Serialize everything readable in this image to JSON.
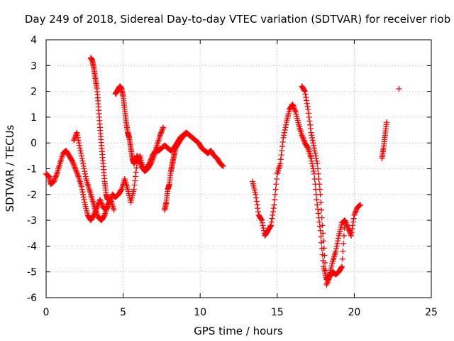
{
  "chart_data": {
    "type": "scatter",
    "title": "Day 249 of 2018, Sidereal Day-to-day VTEC variation (SDTVAR) for receiver riob",
    "xlabel": "GPS time / hours",
    "ylabel": "SDTVAR / TECUs",
    "xlim": [
      0,
      25
    ],
    "ylim": [
      -6,
      4
    ],
    "xticks": [
      0,
      5,
      10,
      15,
      20,
      25
    ],
    "yticks": [
      -6,
      -5,
      -4,
      -3,
      -2,
      -1,
      0,
      1,
      2,
      3,
      4
    ],
    "grid": true,
    "marker": "+",
    "color": "#ff0000",
    "series": [
      {
        "name": "SDTVAR",
        "segments": [
          {
            "x": [
              0.0,
              0.2,
              0.3,
              0.5,
              0.7,
              0.9,
              1.1,
              1.3,
              1.5,
              1.7,
              1.9,
              2.1,
              2.3,
              2.5,
              2.7,
              2.9,
              3.1,
              3.3,
              3.5,
              3.7,
              3.9,
              4.1,
              4.3,
              4.5,
              4.7,
              4.9,
              5.1,
              5.3,
              5.5,
              5.7,
              5.9,
              6.1,
              6.3,
              6.5,
              6.7,
              6.9,
              7.1,
              7.3,
              7.5,
              7.7,
              7.9,
              8.1,
              8.3,
              8.5,
              8.7,
              8.9,
              9.1,
              9.3,
              9.5,
              9.7,
              9.9,
              10.1,
              10.3,
              10.5,
              10.7,
              10.9,
              11.1,
              11.3,
              11.5
            ],
            "y": [
              -1.2,
              -1.3,
              -1.6,
              -1.5,
              -1.2,
              -0.8,
              -0.4,
              -0.3,
              -0.5,
              -0.7,
              -1.0,
              -1.3,
              -1.7,
              -2.3,
              -2.8,
              -3.0,
              -2.8,
              -2.5,
              -2.2,
              -2.5,
              -2.6,
              -2.3,
              -2.0,
              -2.1,
              -2.0,
              -1.8,
              -1.4,
              -1.8,
              -2.3,
              -1.8,
              -0.8,
              -0.5,
              -1.0,
              -1.0,
              -0.8,
              -0.5,
              -0.3,
              -0.3,
              -0.2,
              -0.1,
              -0.2,
              -0.3,
              -0.2,
              0.0,
              0.2,
              0.3,
              0.4,
              0.3,
              0.2,
              0.1,
              0.0,
              -0.2,
              -0.3,
              -0.4,
              -0.3,
              -0.5,
              -0.6,
              -0.8,
              -0.9
            ]
          },
          {
            "x": [
              1.8,
              2.0,
              2.2,
              2.4,
              2.6,
              2.8,
              3.0,
              3.2,
              3.4,
              3.6,
              3.8,
              4.0,
              4.2,
              4.4
            ],
            "y": [
              0.1,
              0.4,
              -0.2,
              -0.8,
              -1.4,
              -1.8,
              -2.2,
              -2.6,
              -2.9,
              -3.0,
              -2.8,
              -2.4,
              -2.2,
              -2.6
            ]
          },
          {
            "x": [
              2.9,
              3.0,
              3.1,
              3.2,
              3.3,
              3.4,
              3.5,
              3.6,
              3.7,
              3.8,
              3.9,
              4.0
            ],
            "y": [
              3.3,
              3.2,
              2.9,
              2.5,
              2.1,
              1.4,
              0.6,
              -0.1,
              -0.8,
              -1.5,
              -2.0,
              -2.2
            ]
          },
          {
            "x": [
              4.5,
              4.6,
              4.7,
              4.8,
              4.9,
              5.0,
              5.1,
              5.2,
              5.3,
              5.4,
              5.5,
              5.6,
              5.7,
              5.8,
              5.9,
              6.0
            ],
            "y": [
              1.9,
              2.0,
              2.1,
              2.2,
              2.1,
              1.8,
              1.3,
              0.8,
              0.4,
              0.2,
              -0.2,
              -0.6,
              -0.8,
              -0.7,
              -0.5,
              -0.6
            ]
          },
          {
            "x": [
              6.0,
              6.2,
              6.4,
              6.6,
              6.8,
              7.0,
              7.2,
              7.4,
              7.6
            ],
            "y": [
              -0.6,
              -0.9,
              -1.1,
              -1.0,
              -0.8,
              -0.5,
              -0.1,
              0.3,
              0.6
            ]
          },
          {
            "x": [
              7.7,
              7.8,
              7.9,
              8.0,
              8.1,
              8.2,
              8.3,
              8.4,
              8.6,
              8.8,
              9.0
            ],
            "y": [
              -2.6,
              -2.3,
              -1.8,
              -1.6,
              -1.1,
              -0.8,
              -0.5,
              -0.2,
              0.0,
              0.2,
              0.3
            ]
          },
          {
            "x": [
              13.4,
              13.6,
              13.8,
              14.0,
              14.2,
              14.4,
              14.6,
              14.8,
              15.0,
              15.2,
              15.4,
              15.6,
              15.8,
              16.0,
              16.2,
              16.4,
              16.6,
              16.8,
              17.0,
              17.2,
              17.4,
              17.6,
              17.8,
              18.0,
              18.2,
              18.4,
              18.6,
              18.8,
              19.0,
              19.2,
              19.4,
              19.6,
              19.8,
              20.0,
              20.2,
              20.4
            ],
            "y": [
              -1.5,
              -2.0,
              -2.8,
              -3.0,
              -3.6,
              -3.4,
              -3.2,
              -2.4,
              -1.2,
              -0.8,
              0.2,
              0.8,
              1.3,
              1.5,
              1.2,
              0.7,
              0.3,
              0.0,
              -0.2,
              -0.6,
              -1.2,
              -2.4,
              -3.4,
              -4.8,
              -5.3,
              -5.1,
              -4.6,
              -4.2,
              -3.6,
              -3.1,
              -3.0,
              -3.3,
              -3.6,
              -2.8,
              -2.5,
              -2.4
            ]
          },
          {
            "x": [
              16.6,
              16.8,
              17.0,
              17.2,
              17.4,
              17.6,
              17.8,
              18.0,
              18.2,
              18.4,
              18.6,
              18.8,
              19.0,
              19.2,
              19.4
            ],
            "y": [
              2.2,
              2.0,
              1.3,
              0.4,
              -0.2,
              -0.8,
              -2.0,
              -3.8,
              -5.5,
              -5.2,
              -5.0,
              -5.1,
              -5.0,
              -4.8,
              -3.0
            ]
          },
          {
            "x": [
              21.8,
              21.9,
              22.0,
              22.1
            ],
            "y": [
              -0.6,
              -0.2,
              0.3,
              0.8
            ]
          },
          {
            "x": [
              22.9
            ],
            "y": [
              2.1
            ]
          }
        ]
      }
    ]
  }
}
